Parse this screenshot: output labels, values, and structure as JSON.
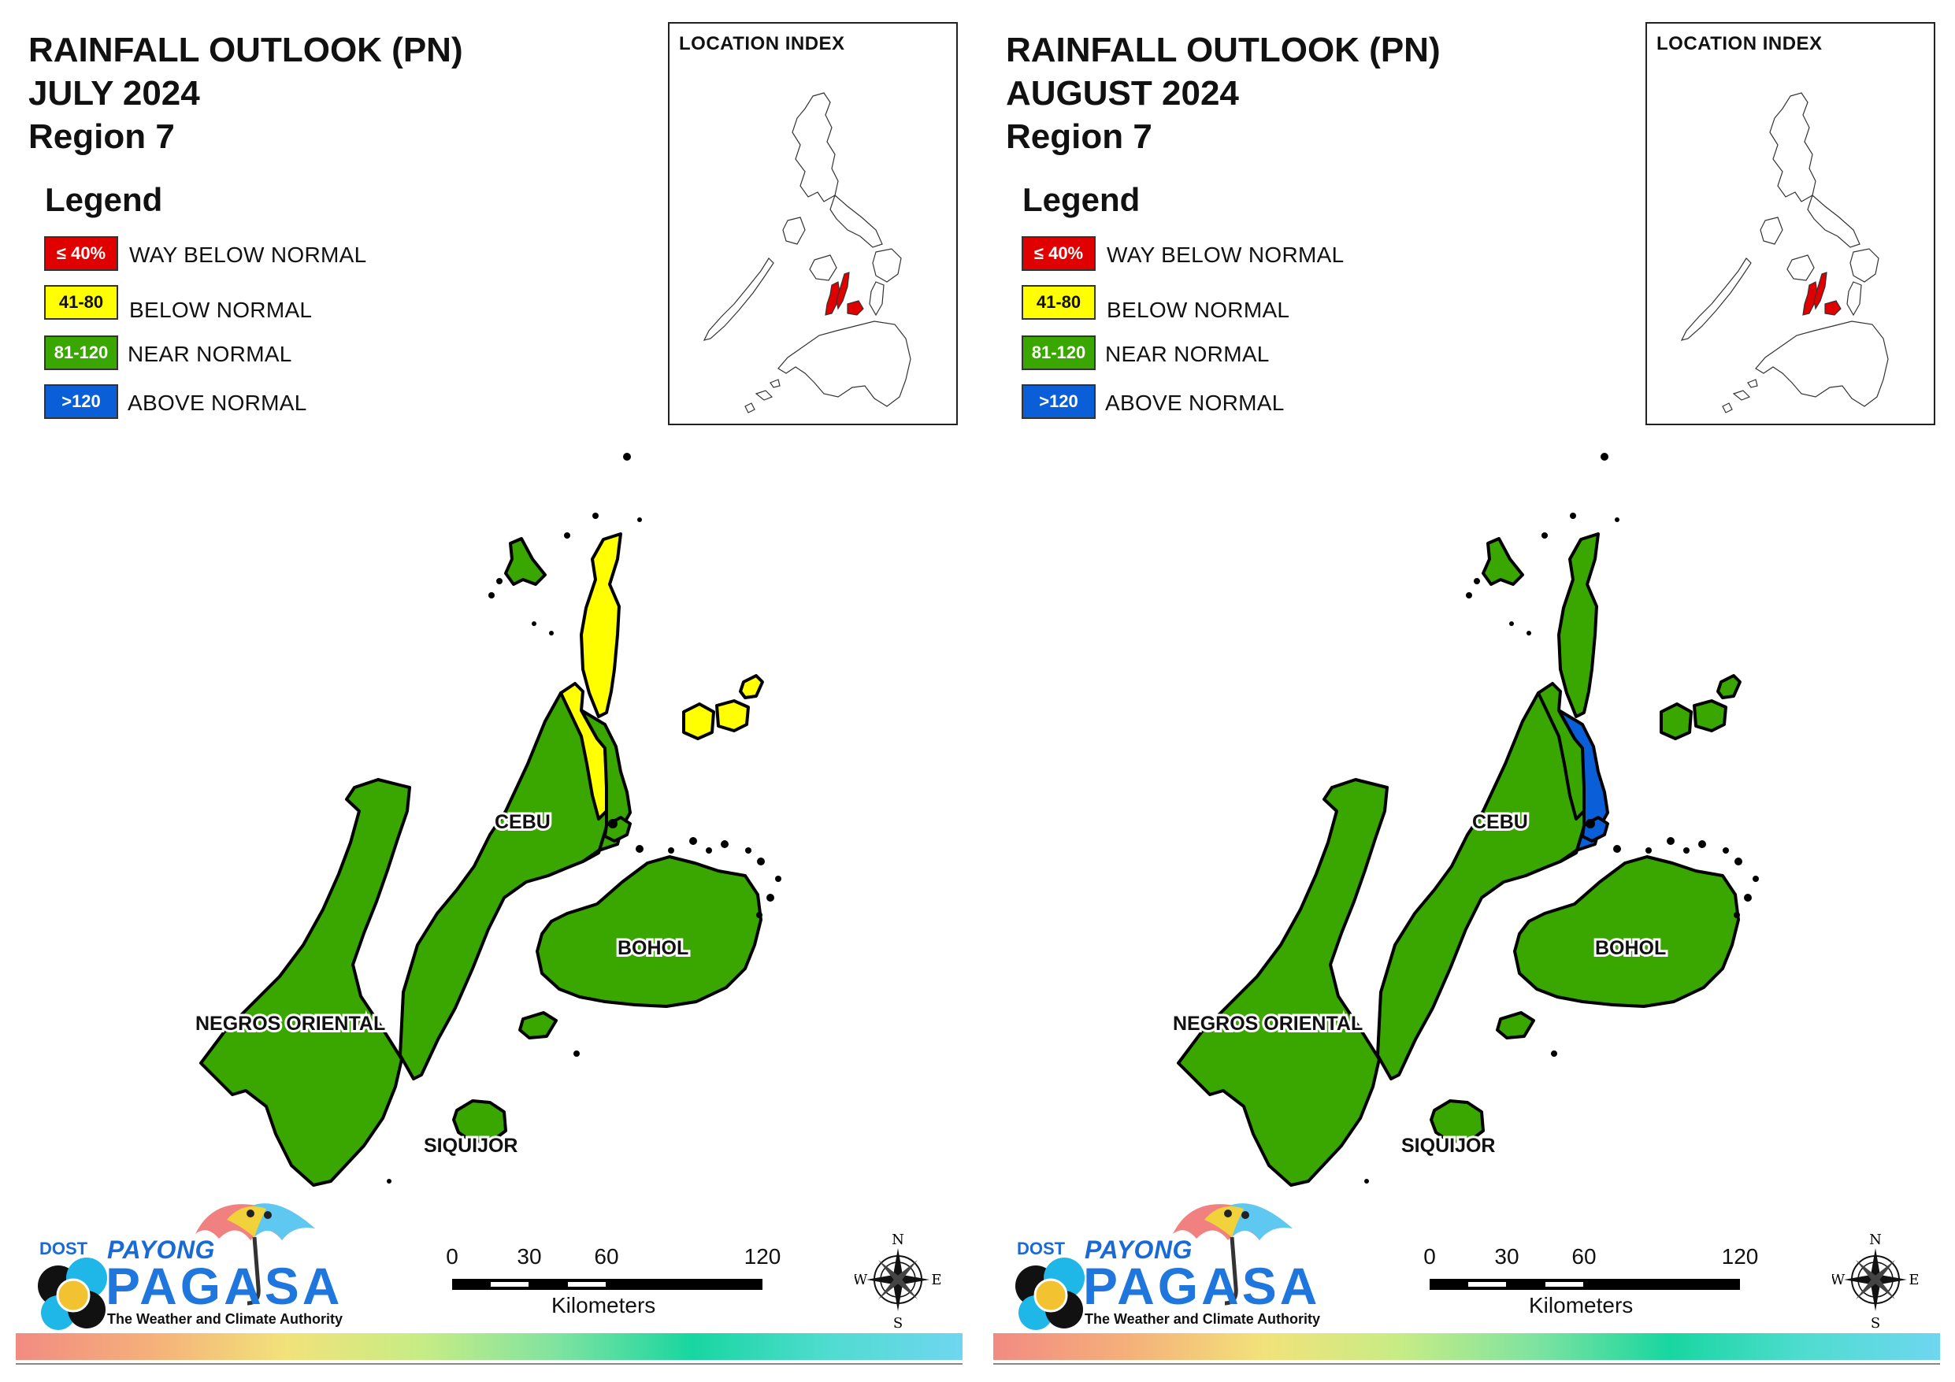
{
  "panels": [
    {
      "title_line1": "RAINFALL OUTLOOK (PN)",
      "title_line2": "JULY 2024",
      "title_line3": "Region 7",
      "legend_title": "Legend",
      "legend": [
        {
          "range": "≤ 40%",
          "label": "WAY BELOW NORMAL",
          "color": "#e00000"
        },
        {
          "range": "41-80",
          "label": "BELOW NORMAL",
          "color": "#ffff00"
        },
        {
          "range": "81-120",
          "label": "NEAR NORMAL",
          "color": "#3aa600"
        },
        {
          "range": ">120",
          "label": "ABOVE NORMAL",
          "color": "#0a5fd8"
        }
      ],
      "inset_title": "LOCATION INDEX",
      "province_labels": {
        "cebu": "CEBU",
        "bohol": "BOHOL",
        "negros": "NEGROS ORIENTAL",
        "siquijor": "SIQUIJOR"
      },
      "category": {
        "negros": "NEAR NORMAL",
        "cebu_north": "BELOW NORMAL",
        "cebu_south": "NEAR NORMAL",
        "camotes": "BELOW NORMAL",
        "bohol": "NEAR NORMAL",
        "siquijor": "NEAR NORMAL",
        "bantayan": "NEAR NORMAL",
        "metro_cebu": "NEAR NORMAL"
      },
      "logo": {
        "dost": "DOST",
        "payong": "PAYONG",
        "pagasa": "PAGASA",
        "tagline": "The Weather and Climate Authority"
      },
      "scale": {
        "ticks": [
          "0",
          "30",
          "60",
          "120"
        ],
        "unit": "Kilometers"
      },
      "compass": {
        "n": "N",
        "s": "S",
        "e": "E",
        "w": "W"
      }
    },
    {
      "title_line1": "RAINFALL OUTLOOK (PN)",
      "title_line2": "AUGUST 2024",
      "title_line3": "Region 7",
      "legend_title": "Legend",
      "legend": [
        {
          "range": "≤ 40%",
          "label": "WAY BELOW NORMAL",
          "color": "#e00000"
        },
        {
          "range": "41-80",
          "label": "BELOW NORMAL",
          "color": "#ffff00"
        },
        {
          "range": "81-120",
          "label": "NEAR NORMAL",
          "color": "#3aa600"
        },
        {
          "range": ">120",
          "label": "ABOVE NORMAL",
          "color": "#0a5fd8"
        }
      ],
      "inset_title": "LOCATION INDEX",
      "province_labels": {
        "cebu": "CEBU",
        "bohol": "BOHOL",
        "negros": "NEGROS ORIENTAL",
        "siquijor": "SIQUIJOR"
      },
      "category": {
        "negros": "NEAR NORMAL",
        "cebu_north": "NEAR NORMAL",
        "cebu_south": "NEAR NORMAL",
        "camotes": "NEAR NORMAL",
        "bohol": "NEAR NORMAL",
        "siquijor": "NEAR NORMAL",
        "bantayan": "NEAR NORMAL",
        "metro_cebu": "ABOVE NORMAL"
      },
      "logo": {
        "dost": "DOST",
        "payong": "PAYONG",
        "pagasa": "PAGASA",
        "tagline": "The Weather and Climate Authority"
      },
      "scale": {
        "ticks": [
          "0",
          "30",
          "60",
          "120"
        ],
        "unit": "Kilometers"
      },
      "compass": {
        "n": "N",
        "s": "S",
        "e": "E",
        "w": "W"
      }
    }
  ]
}
